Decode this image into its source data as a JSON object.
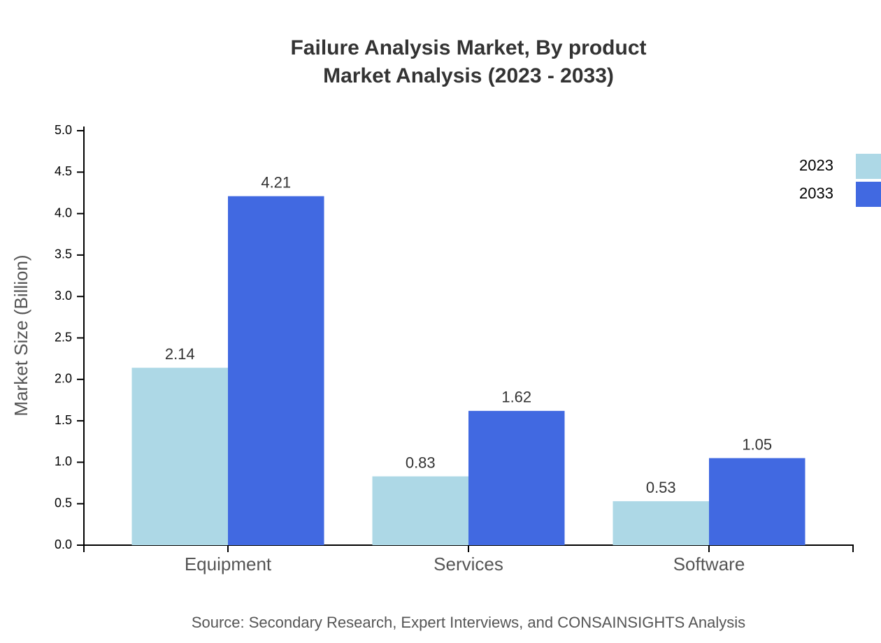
{
  "chart_data": {
    "type": "bar",
    "title": "Failure Analysis Market, By product",
    "subtitle": "Market Analysis (2023 - 2033)",
    "y_label": "Market Size (Billion)",
    "source": "Source: Secondary Research, Expert Interviews, and CONSAINSIGHTS Analysis",
    "categories": [
      "Equipment",
      "Services",
      "Software"
    ],
    "series": [
      {
        "name": "2023",
        "color": "#add8e6",
        "values": [
          2.14,
          0.83,
          0.53
        ]
      },
      {
        "name": "2033",
        "color": "#4169e1",
        "values": [
          4.21,
          1.62,
          1.05
        ]
      }
    ],
    "ylim": [
      0,
      5
    ],
    "yticks": [
      {
        "value": 0,
        "label": "0.0"
      },
      0.5,
      {
        "value": 1,
        "label": "1.0"
      },
      1.5,
      {
        "value": 2,
        "label": "2.0"
      },
      2.5,
      {
        "value": 3,
        "label": "3.0"
      },
      3.5,
      {
        "value": 4,
        "label": "4.0"
      },
      4.5,
      {
        "value": 5,
        "label": "5.0"
      }
    ],
    "grid": false,
    "legend": "top-right"
  }
}
